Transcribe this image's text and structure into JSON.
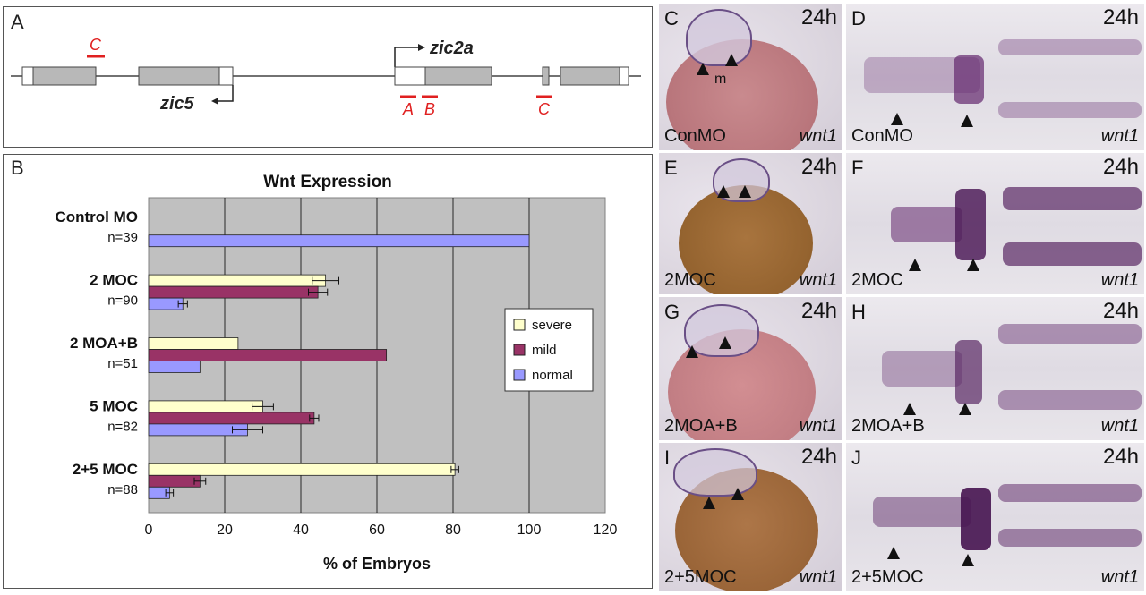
{
  "panels": {
    "A": {
      "label": "A"
    },
    "B": {
      "label": "B"
    }
  },
  "gene_map": {
    "zic2a_label": "zic2a",
    "zic5_label": "zic5",
    "morpholino_labels": [
      "C",
      "A",
      "B",
      "C"
    ],
    "colors": {
      "exon": "#b8b8b8",
      "utr": "#ffffff",
      "morpholino": "#e02020"
    }
  },
  "chart_data": {
    "type": "bar",
    "orientation": "horizontal",
    "title": "Wnt Expression",
    "xlabel": "% of Embryos",
    "ylabel": "",
    "xlim": [
      0,
      120
    ],
    "xticks": [
      0,
      20,
      40,
      60,
      80,
      100,
      120
    ],
    "grid": true,
    "legend_placement": "right",
    "categories": [
      {
        "name": "Control MO",
        "n": "n=39"
      },
      {
        "name": "2 MOC",
        "n": "n=90"
      },
      {
        "name": "2 MOA+B",
        "n": "n=51"
      },
      {
        "name": "5 MOC",
        "n": "n=82"
      },
      {
        "name": "2+5 MOC",
        "n": "n=88"
      }
    ],
    "series": [
      {
        "name": "severe",
        "color": "#ffffcc",
        "values": [
          null,
          46.5,
          23.5,
          30,
          80.5
        ],
        "errors": [
          null,
          3.5,
          null,
          2.8,
          1
        ]
      },
      {
        "name": "mild",
        "color": "#993366",
        "values": [
          null,
          44.5,
          62.5,
          43.5,
          13.5
        ],
        "errors": [
          null,
          2.5,
          null,
          1.2,
          1.5
        ]
      },
      {
        "name": "normal",
        "color": "#9999ff",
        "values": [
          100,
          9,
          13.5,
          26,
          5.5
        ],
        "errors": [
          null,
          1.2,
          null,
          4,
          1
        ]
      }
    ]
  },
  "photos": [
    {
      "id": "C",
      "stage": "24h",
      "condition": "ConMO",
      "probe": "wnt1",
      "marker": "m"
    },
    {
      "id": "D",
      "stage": "24h",
      "condition": "ConMO",
      "probe": "wnt1"
    },
    {
      "id": "E",
      "stage": "24h",
      "condition": "",
      "probe": ""
    },
    {
      "id": "F",
      "stage": "24h",
      "condition": "2MOC",
      "probe": "wnt1"
    },
    {
      "id": "G",
      "stage": "24h",
      "condition": "2MOA+B",
      "probe": "wnt1"
    },
    {
      "id": "H",
      "stage": "24h",
      "condition": "2MOA+B",
      "probe": "wnt1"
    },
    {
      "id": "I",
      "stage": "24h",
      "condition": "2+5MOC",
      "probe": "wnt1"
    },
    {
      "id": "J",
      "stage": "24h",
      "condition": "2+5MOC",
      "probe": "wnt1"
    }
  ],
  "photo_E_bottom": {
    "condition": "2MOC",
    "probe": "wnt1"
  }
}
